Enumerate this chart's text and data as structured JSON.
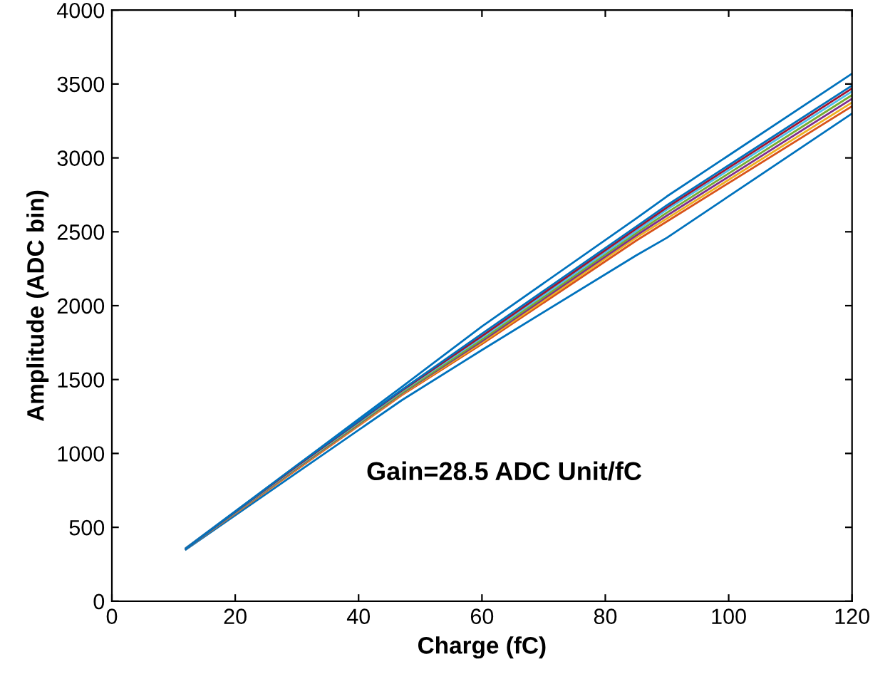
{
  "chart_data": {
    "type": "line",
    "xlabel": "Charge (fC)",
    "ylabel": "Amplitude (ADC bin)",
    "annotations": [
      "Gain=28.5 ADC Unit/fC"
    ],
    "x": [
      12,
      30,
      47,
      60,
      85,
      90,
      120
    ],
    "series": [
      {
        "color": "#0072bd",
        "values": [
          360,
          920,
          1450,
          1860,
          2590,
          2740,
          3570
        ]
      },
      {
        "color": "#0072bd",
        "values": [
          350,
          870,
          1360,
          1700,
          2340,
          2460,
          3300
        ]
      },
      {
        "color": "#d95319",
        "values": [
          355,
          890,
          1395,
          1740,
          2440,
          2570,
          3350
        ]
      },
      {
        "color": "#edb120",
        "values": [
          355,
          895,
          1400,
          1750,
          2460,
          2590,
          3375
        ]
      },
      {
        "color": "#7e2f8e",
        "values": [
          355,
          900,
          1405,
          1760,
          2475,
          2610,
          3400
        ]
      },
      {
        "color": "#77ac30",
        "values": [
          355,
          905,
          1410,
          1770,
          2490,
          2630,
          3425
        ]
      },
      {
        "color": "#4dbeee",
        "values": [
          355,
          910,
          1420,
          1785,
          2505,
          2650,
          3450
        ]
      },
      {
        "color": "#a2142f",
        "values": [
          355,
          915,
          1425,
          1795,
          2520,
          2665,
          3470
        ]
      },
      {
        "color": "#0072bd",
        "values": [
          355,
          920,
          1430,
          1810,
          2535,
          2680,
          3490
        ]
      }
    ],
    "xlim": [
      0,
      120
    ],
    "xticks": [
      0,
      20,
      40,
      60,
      80,
      100,
      120
    ],
    "ylim": [
      0,
      4000
    ],
    "yticks": [
      0,
      500,
      1000,
      1500,
      2000,
      2500,
      3000,
      3500,
      4000
    ],
    "grid": false,
    "legend": false,
    "marker": "none",
    "line_style": "solid"
  }
}
